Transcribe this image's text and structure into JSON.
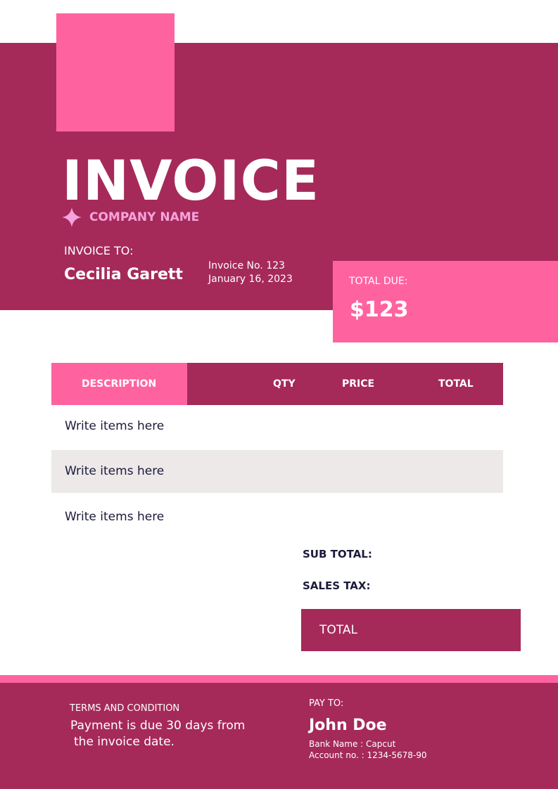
{
  "colors": {
    "primary": "#A52A59",
    "accent": "#FF639F",
    "star": "#F7A3DD",
    "row_alt": "#EDE9E9",
    "text_dark": "#1B1B3A"
  },
  "header": {
    "title": "INVOICE",
    "company": "COMPANY NAME",
    "star_icon": "four-point-star"
  },
  "bill_to": {
    "label": "INVOICE TO:",
    "name": "Cecilia Garett",
    "invoice_no": "Invoice No. 123",
    "date": "January 16, 2023"
  },
  "total_due": {
    "label": "TOTAL DUE:",
    "amount": "$123"
  },
  "table": {
    "headers": [
      "DESCRIPTION",
      "QTY",
      "PRICE",
      "TOTAL"
    ],
    "rows": [
      "Write items here",
      "Write items here",
      "Write items here"
    ]
  },
  "summary": {
    "subtotal_label": "SUB TOTAL:",
    "tax_label": "SALES TAX:",
    "total_label": "TOTAL"
  },
  "footer": {
    "terms_label": "TERMS AND CONDITION",
    "terms_line1": "Payment is due 30 days from",
    "terms_line2": "the invoice date.",
    "pay_label": "PAY TO:",
    "pay_name": "John Doe",
    "bank": "Bank Name : Capcut",
    "account": "Account no. : 1234-5678-90"
  }
}
